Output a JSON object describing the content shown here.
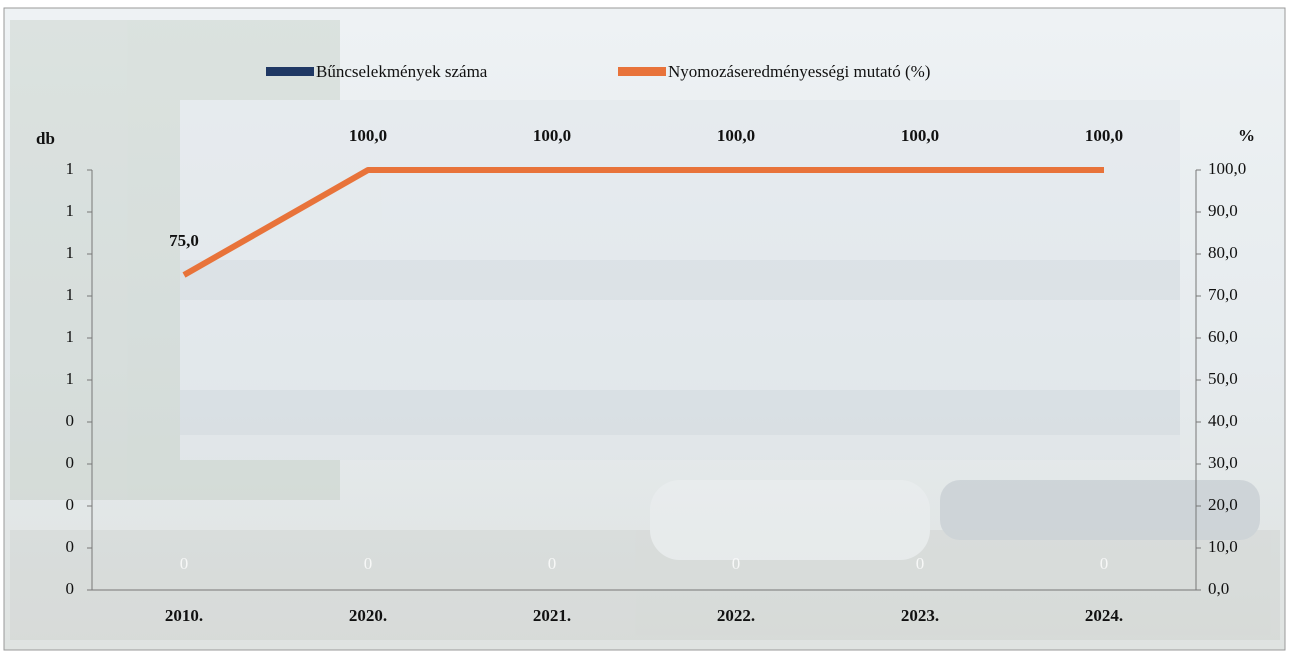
{
  "chart_data": {
    "type": "combo",
    "categories": [
      "2010.",
      "2020.",
      "2021.",
      "2022.",
      "2023.",
      "2024."
    ],
    "y_label": "db",
    "y2_label": "%",
    "ylim": [
      0,
      1
    ],
    "yticks": [
      {
        "value": 0,
        "label": "0"
      },
      {
        "value": 0.1,
        "label": "0"
      },
      {
        "value": 0.2,
        "label": "0"
      },
      {
        "value": 0.3,
        "label": "0"
      },
      {
        "value": 0.4,
        "label": "0"
      },
      {
        "value": 0.5,
        "label": "1"
      },
      {
        "value": 0.6,
        "label": "1"
      },
      {
        "value": 0.7,
        "label": "1"
      },
      {
        "value": 0.8,
        "label": "1"
      },
      {
        "value": 0.9,
        "label": "1"
      },
      {
        "value": 1,
        "label": "1"
      }
    ],
    "y2lim": [
      0,
      100
    ],
    "y2ticks": [
      {
        "value": 0,
        "label": "0,0"
      },
      {
        "value": 10,
        "label": "10,0"
      },
      {
        "value": 20,
        "label": "20,0"
      },
      {
        "value": 30,
        "label": "30,0"
      },
      {
        "value": 40,
        "label": "40,0"
      },
      {
        "value": 50,
        "label": "50,0"
      },
      {
        "value": 60,
        "label": "60,0"
      },
      {
        "value": 70,
        "label": "70,0"
      },
      {
        "value": 80,
        "label": "80,0"
      },
      {
        "value": 90,
        "label": "90,0"
      },
      {
        "value": 100,
        "label": "100,0"
      }
    ],
    "grid": false,
    "legend": "top",
    "series": [
      {
        "name": "Bűncselekmények száma",
        "type": "bar",
        "color": "#1f3864",
        "values": [
          0,
          0,
          0,
          0,
          0,
          0
        ]
      },
      {
        "name": "Nyomozáseredményességi mutató (%)",
        "type": "line",
        "axis": "y2",
        "color": "#e8733a",
        "values": [
          75,
          100,
          100,
          100,
          100,
          100
        ],
        "value_labels": [
          "75,0",
          "100,0",
          "100,0",
          "100,0",
          "100,0",
          "100,0"
        ]
      }
    ]
  }
}
